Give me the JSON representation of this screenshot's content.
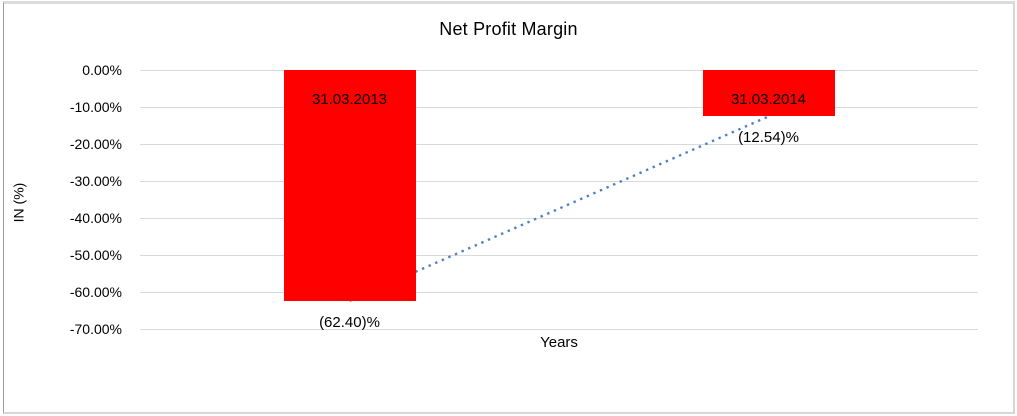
{
  "frame": {
    "background": "#ffffff",
    "border_color": "#c9c9c9"
  },
  "chart_data": {
    "type": "bar",
    "title": "Net Profit Margin",
    "xlabel": "Years",
    "ylabel": "IN (%)",
    "categories": [
      "31.03.2013",
      "31.03.2014"
    ],
    "values": [
      -62.4,
      -12.54
    ],
    "value_labels": [
      "(62.40)%",
      "(12.54)%"
    ],
    "y_ticks": [
      "0.00%",
      "-10.00%",
      "-20.00%",
      "-30.00%",
      "-40.00%",
      "-50.00%",
      "-60.00%",
      "-70.00%"
    ],
    "ylim": [
      -70,
      0
    ],
    "grid": true,
    "legend": "none",
    "bar_color": "#ff0000",
    "bar_label_color": "#000000",
    "gridline_color": "#d9d9d9",
    "trendline": {
      "type": "linear",
      "style": "dotted",
      "color": "#4f81bd",
      "from_value": -62.4,
      "to_value": -12.54
    }
  }
}
